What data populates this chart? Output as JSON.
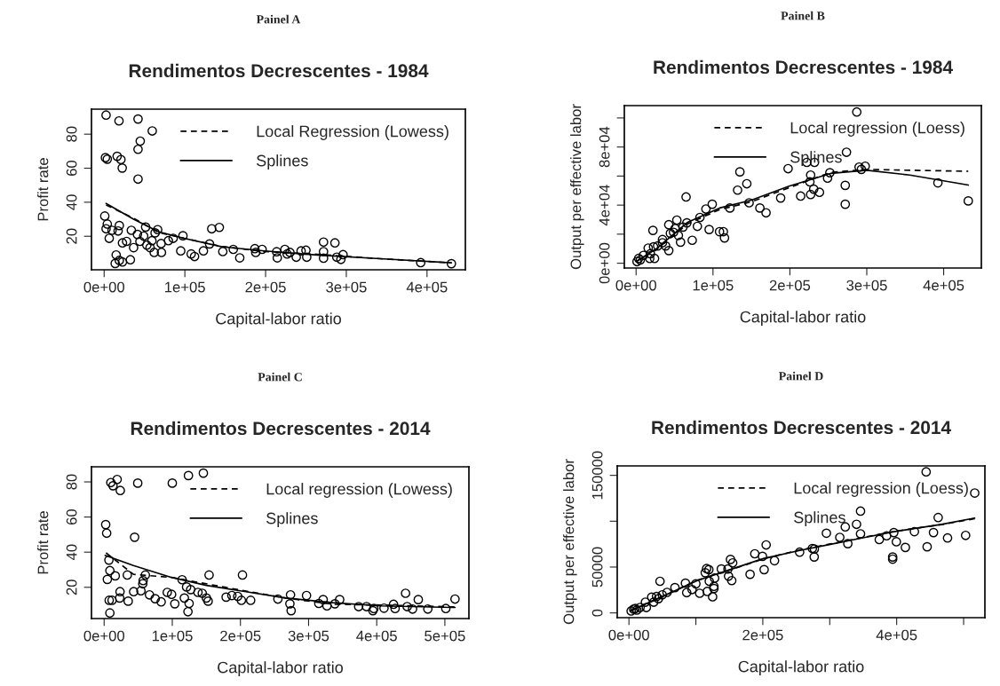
{
  "chart_data": [
    {
      "type": "scatter",
      "title": "Rendimentos Decrescentes - 1984",
      "xlabel": "Capital-labor ratio",
      "ylabel": "Profit rate",
      "annotations": [
        "Painel A"
      ],
      "legend": "top right",
      "xlim": [
        -15700,
        447500
      ],
      "ylim": [
        0.3,
        94.7
      ],
      "xticks": [
        {
          "value": 0,
          "label": "0e+00"
        },
        {
          "value": 100000,
          "label": "1e+05"
        },
        {
          "value": 200000,
          "label": "2e+05"
        },
        {
          "value": 300000,
          "label": "3e+05"
        },
        {
          "value": 400000,
          "label": "4e+05"
        }
      ],
      "yticks": [
        20,
        40,
        60,
        80
      ],
      "series": [
        {
          "marker": "circle",
          "color": "#000000",
          "x": [
            2400,
            18400,
            42000,
            59600,
            44700,
            42000,
            1600,
            3900,
            16100,
            20800,
            22400,
            42000,
            800,
            3900,
            2400,
            9800,
            18800,
            17300,
            6300,
            22700,
            27800,
            33700,
            36500,
            41200,
            44300,
            49000,
            51400,
            52900,
            56900,
            59200,
            63100,
            66300,
            62000,
            71000,
            70600,
            79600,
            85500,
            94900,
            97600,
            107800,
            112000,
            123000,
            130600,
            133300,
            142700,
            147000,
            160000,
            168000,
            186700,
            187800,
            195700,
            214500,
            213700,
            223900,
            226700,
            230200,
            238000,
            244000,
            250000,
            251000,
            271800,
            271800,
            271800,
            285900,
            288200,
            293300,
            296000,
            392200,
            430200,
            13700,
            18800,
            22700,
            32500,
            14900
          ],
          "values": [
            91.2,
            87.8,
            88.9,
            81.9,
            75.9,
            71.1,
            66.2,
            65.3,
            67.0,
            65.1,
            60.1,
            53.6,
            31.9,
            27.2,
            24.4,
            23.5,
            26.3,
            23.1,
            18.8,
            16.1,
            17.0,
            23.5,
            13.3,
            21.1,
            17.0,
            20.1,
            25.4,
            14.8,
            13.3,
            17.4,
            22.0,
            23.9,
            10.5,
            10.5,
            15.7,
            17.4,
            18.8,
            11.4,
            20.3,
            9.6,
            8.1,
            11.4,
            15.5,
            24.4,
            25.2,
            11.0,
            12.3,
            7.3,
            12.7,
            10.5,
            12.3,
            7.3,
            10.9,
            12.3,
            9.6,
            10.5,
            7.7,
            11.4,
            11.8,
            7.7,
            16.6,
            11.0,
            7.1,
            16.1,
            7.7,
            6.4,
            9.2,
            4.5,
            3.9,
            4.0,
            5.8,
            4.9,
            6.2,
            9.0
          ]
        },
        {
          "type": "line",
          "name": "Local Regression (Lowess)",
          "color": "#000000",
          "line_style": "dashed",
          "x": [
            2400,
            36500,
            67800,
            99000,
            146000,
            199000,
            264000,
            342000,
            430200
          ],
          "values": [
            38.4,
            30.6,
            22.2,
            18.8,
            14.0,
            11.0,
            9.4,
            6.8,
            4.4
          ]
        },
        {
          "type": "line",
          "name": "Splines",
          "color": "#000000",
          "line_style": "solid",
          "x": [
            2400,
            36500,
            67800,
            99000,
            146000,
            199000,
            264000,
            342000,
            430200
          ],
          "values": [
            39.3,
            30.0,
            22.6,
            18.8,
            13.8,
            11.4,
            9.0,
            6.8,
            4.4
          ]
        }
      ]
    },
    {
      "type": "scatter",
      "title": "Rendimentos Decrescentes - 1984",
      "xlabel": "Capital-labor ratio",
      "ylabel": "Output per effective labor",
      "annotations": [
        "Painel B"
      ],
      "legend": "top right",
      "xlim": [
        -15300,
        449000
      ],
      "ylim": [
        -3300,
        108500
      ],
      "xticks": [
        {
          "value": 0,
          "label": "0e+00"
        },
        {
          "value": 100000,
          "label": "1e+05"
        },
        {
          "value": 200000,
          "label": "2e+05"
        },
        {
          "value": 300000,
          "label": "3e+05"
        },
        {
          "value": 400000,
          "label": "4e+05"
        }
      ],
      "yticks": [
        {
          "value": 0,
          "label": "0e+00"
        },
        {
          "value": 20000,
          "label": null
        },
        {
          "value": 40000,
          "label": "4e+04"
        },
        {
          "value": 60000,
          "label": null
        },
        {
          "value": 80000,
          "label": "8e+04"
        },
        {
          "value": 100000,
          "label": null
        }
      ],
      "series": [
        {
          "marker": "circle",
          "color": "#000000",
          "x": [
            287000,
            273600,
            222000,
            232000,
            197700,
            290000,
            298000,
            293000,
            135000,
            252000,
            227000,
            249000,
            144000,
            392500,
            226000,
            132000,
            272000,
            231000,
            238500,
            227000,
            214000,
            188000,
            65000,
            272000,
            432000,
            99000,
            90800,
            147000,
            161000,
            169000,
            122000,
            83000,
            53000,
            42500,
            66000,
            79700,
            95000,
            108500,
            113500,
            115000,
            73000,
            57800,
            21900,
            48700,
            61000,
            55000,
            44600,
            34300,
            42500,
            15700,
            22700,
            28000,
            38400,
            18600,
            24000,
            17700,
            9500,
            3300,
            1200,
            5400,
            34300,
            50800
          ],
          "values": [
            104100,
            76400,
            69400,
            69400,
            65100,
            66200,
            66800,
            64600,
            62900,
            62300,
            60700,
            58600,
            54700,
            55300,
            56000,
            50300,
            53600,
            51000,
            48800,
            47300,
            46200,
            44900,
            45600,
            40600,
            42900,
            40600,
            37300,
            41600,
            38000,
            34700,
            38000,
            31500,
            29700,
            26500,
            27800,
            25400,
            23200,
            21700,
            21700,
            17400,
            15800,
            14500,
            22600,
            21300,
            24900,
            19100,
            20600,
            16300,
            8700,
            10400,
            11300,
            11900,
            11900,
            6500,
            3300,
            3300,
            5400,
            3300,
            1100,
            2200,
            14100,
            23900
          ]
        },
        {
          "type": "line",
          "name": "Local regression (Loess)",
          "color": "#000000",
          "line_style": "dashed",
          "x": [
            0,
            26000,
            67000,
            108500,
            150000,
            199000,
            253000,
            300000,
            356000,
            432000
          ],
          "values": [
            1100,
            9300,
            27100,
            36900,
            42300,
            52000,
            62500,
            64600,
            64000,
            63300
          ]
        },
        {
          "type": "line",
          "name": "Splines",
          "color": "#000000",
          "line_style": "solid",
          "x": [
            0,
            26000,
            67000,
            108500,
            150000,
            199000,
            253000,
            300000,
            356000,
            432000
          ],
          "values": [
            1100,
            9800,
            28200,
            38000,
            43400,
            53100,
            61800,
            64000,
            60700,
            53800
          ]
        }
      ]
    },
    {
      "type": "scatter",
      "title": "Rendimentos Decrescentes - 2014",
      "xlabel": "Capital-labor ratio",
      "ylabel": "Profit rate",
      "annotations": [
        "Painel C"
      ],
      "legend": "top right",
      "xlim": [
        -18600,
        535300
      ],
      "ylim": [
        2.2,
        88.6
      ],
      "xticks": [
        {
          "value": 0,
          "label": "0e+00"
        },
        {
          "value": 100000,
          "label": "1e+05"
        },
        {
          "value": 200000,
          "label": "2e+05"
        },
        {
          "value": 300000,
          "label": "3e+05"
        },
        {
          "value": 400000,
          "label": "4e+05"
        },
        {
          "value": 500000,
          "label": "5e+05"
        }
      ],
      "yticks": [
        20,
        40,
        60,
        80
      ],
      "series": [
        {
          "marker": "circle",
          "color": "#000000",
          "x": [
            145600,
            123700,
            100000,
            49300,
            9800,
            19100,
            13000,
            23700,
            2300,
            3700,
            44700,
            7000,
            8400,
            16300,
            4700,
            34000,
            60500,
            57200,
            56700,
            114400,
            154000,
            203000,
            23300,
            43300,
            54000,
            66500,
            74900,
            83700,
            92600,
            99000,
            103700,
            117700,
            121000,
            127000,
            124700,
            123000,
            137700,
            144000,
            150000,
            152600,
            179000,
            187400,
            196000,
            201400,
            215000,
            255000,
            273500,
            272600,
            274400,
            297000,
            315000,
            321400,
            327000,
            338600,
            345600,
            373500,
            385000,
            395800,
            394400,
            410700,
            424700,
            427000,
            442300,
            444700,
            452600,
            461000,
            475000,
            501400,
            514900,
            7400,
            11600,
            8400,
            22800,
            35300
          ],
          "values": [
            85.0,
            83.6,
            79.3,
            79.3,
            79.6,
            81.4,
            77.8,
            75.1,
            55.7,
            50.8,
            48.5,
            35.5,
            29.5,
            26.5,
            24.5,
            27.0,
            27.0,
            23.8,
            22.0,
            24.3,
            27.0,
            27.0,
            17.5,
            17.5,
            18.0,
            15.7,
            13.5,
            11.7,
            17.1,
            16.0,
            10.6,
            13.9,
            20.2,
            18.7,
            10.8,
            6.1,
            17.1,
            16.6,
            13.9,
            12.1,
            14.4,
            15.3,
            14.8,
            12.6,
            12.6,
            13.3,
            15.7,
            10.6,
            6.7,
            15.3,
            10.8,
            13.0,
            9.4,
            10.6,
            13.0,
            9.0,
            9.0,
            7.9,
            6.7,
            8.1,
            10.3,
            7.9,
            16.6,
            9.0,
            7.6,
            13.0,
            7.6,
            7.9,
            13.3,
            12.6,
            12.6,
            5.4,
            13.9,
            12.1
          ]
        },
        {
          "type": "line",
          "name": "Local regression (Lowess)",
          "color": "#000000",
          "line_style": "dashed",
          "x": [
            2800,
            43000,
            99000,
            150000,
            200000,
            266500,
            336000,
            406000,
            515000
          ],
          "values": [
            39.6,
            27.4,
            25.6,
            22.0,
            18.4,
            13.9,
            10.3,
            9.9,
            8.8
          ]
        },
        {
          "type": "line",
          "name": "Splines",
          "color": "#000000",
          "line_style": "solid",
          "x": [
            1400,
            43000,
            99000,
            150000,
            200000,
            266500,
            336000,
            406000,
            515000
          ],
          "values": [
            38.2,
            32.4,
            25.6,
            21.1,
            18.0,
            13.9,
            11.2,
            9.4,
            8.5
          ]
        }
      ]
    },
    {
      "type": "scatter",
      "title": "Rendimentos Decrescentes - 2014",
      "xlabel": "Capital-labor ratio",
      "ylabel": "Output per effective labor",
      "annotations": [
        "Painel D"
      ],
      "legend": "top right",
      "xlim": [
        -17500,
        531800
      ],
      "ylim": [
        -5200,
        160300
      ],
      "xticks": [
        {
          "value": 0,
          "label": "0e+00"
        },
        {
          "value": 100000,
          "label": null
        },
        {
          "value": 200000,
          "label": "2e+05"
        },
        {
          "value": 300000,
          "label": null
        },
        {
          "value": 400000,
          "label": "4e+05"
        },
        {
          "value": 500000,
          "label": null
        }
      ],
      "yticks": [
        0,
        50000,
        {
          "value": 100000,
          "label": null
        },
        150000
      ],
      "series": [
        {
          "marker": "circle",
          "color": "#000000",
          "x": [
            444000,
            516600,
            346000,
            462000,
            340000,
            323200,
            346000,
            315000,
            327000,
            295000,
            374000,
            385000,
            395700,
            399500,
            413000,
            426500,
            445500,
            455000,
            476000,
            503000,
            394000,
            394000,
            274000,
            255000,
            276800,
            205000,
            188000,
            199500,
            217500,
            202000,
            181000,
            151700,
            155000,
            138000,
            147900,
            148800,
            153600,
            116000,
            119400,
            114000,
            128000,
            120000,
            127000,
            127000,
            117000,
            125000,
            105700,
            100000,
            84400,
            94300,
            86300,
            68700,
            46400,
            56900,
            49800,
            41200,
            34000,
            44000,
            37000,
            24600,
            26000,
            16600,
            7100,
            11800,
            3300,
            9500,
            277000
          ],
          "values": [
            153800,
            130700,
            111000,
            104000,
            96600,
            93800,
            86200,
            82400,
            75500,
            86900,
            80000,
            84100,
            87600,
            77600,
            71400,
            88600,
            72100,
            87600,
            81700,
            84500,
            61000,
            58600,
            70300,
            66200,
            61000,
            74100,
            64500,
            61700,
            56900,
            47200,
            42100,
            58300,
            54500,
            47900,
            47900,
            40000,
            35200,
            48300,
            47200,
            43800,
            37900,
            34500,
            29000,
            26600,
            23400,
            17600,
            21400,
            31700,
            32400,
            25500,
            22100,
            27600,
            34500,
            22400,
            19700,
            17900,
            17200,
            15500,
            11700,
            11700,
            5900,
            5900,
            4100,
            3100,
            2100,
            4800,
            69700
          ]
        },
        {
          "type": "line",
          "name": "Local regression (Loess)",
          "color": "#000000",
          "line_style": "dashed",
          "x": [
            2400,
            49800,
            102000,
            154000,
            201000,
            253600,
            301000,
            348000,
            396000,
            467000,
            516600
          ],
          "values": [
            2400,
            17600,
            35600,
            47500,
            59000,
            68300,
            75200,
            82000,
            88900,
            96300,
            102800
          ]
        },
        {
          "type": "line",
          "name": "Splines",
          "color": "#000000",
          "line_style": "solid",
          "x": [
            2400,
            49800,
            102000,
            154000,
            201000,
            253600,
            301000,
            348000,
            396000,
            467000,
            516600
          ],
          "values": [
            2400,
            17900,
            35200,
            47900,
            59300,
            67900,
            74800,
            81700,
            88600,
            96600,
            103400
          ]
        }
      ]
    }
  ]
}
